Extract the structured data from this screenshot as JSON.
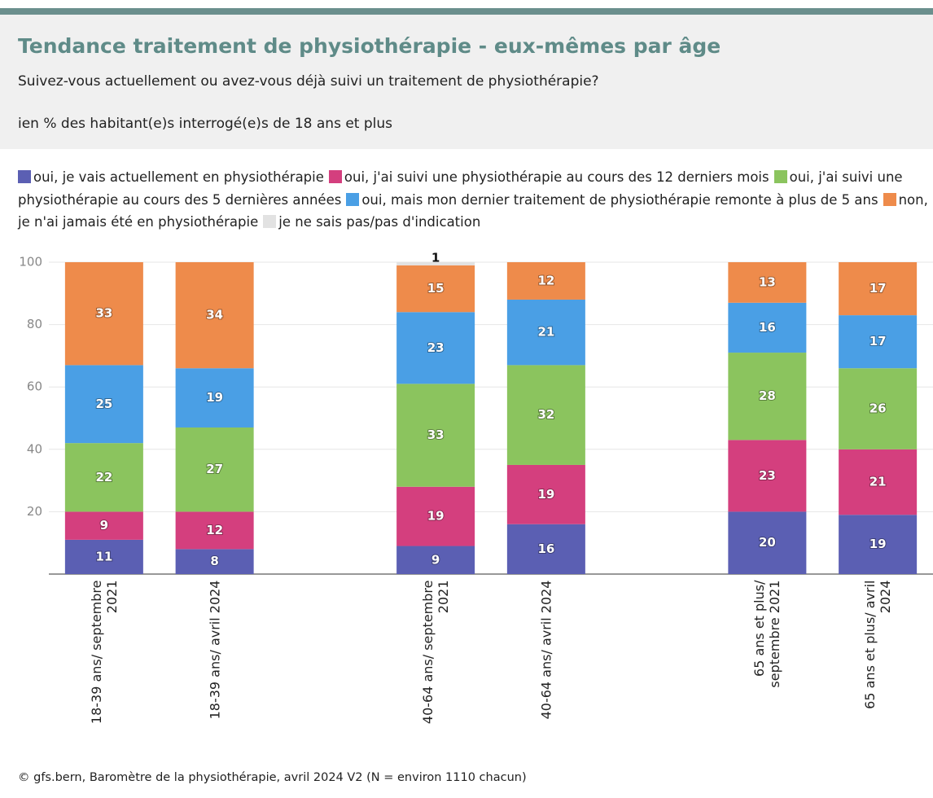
{
  "chart_data": {
    "type": "bar",
    "stacked": true,
    "title": "Tendance traitement de physiothérapie - eux-mêmes par âge",
    "subtitle": "Suivez-vous actuellement ou avez-vous déjà suivi un traitement de physiothérapie?",
    "unit_note": "ien % des habitant(e)s interrogé(e)s de 18 ans et plus",
    "source": "© gfs.bern, Baromètre de la physiothérapie, avril 2024 V2 (N = environ 1110 chacun)",
    "categories": [
      "18-39 ans/ septembre 2021",
      "18-39 ans/ avril 2024",
      null,
      "40-64 ans/ septembre 2021",
      "40-64 ans/ avril 2024",
      null,
      "65 ans et plus/ septembre 2021",
      "65 ans et plus/ avril 2024"
    ],
    "series": [
      {
        "name": "oui, je vais actuellement en physiothérapie",
        "color": "#5b5fb3",
        "values": [
          11,
          8,
          null,
          9,
          16,
          null,
          20,
          19
        ]
      },
      {
        "name": "oui, j'ai suivi une physiothérapie au cours des 12 derniers mois",
        "color": "#d43f7e",
        "values": [
          9,
          12,
          null,
          19,
          19,
          null,
          23,
          21
        ]
      },
      {
        "name": "oui, j'ai suivi une physiothérapie au cours des 5 dernières années",
        "color": "#8bc45e",
        "values": [
          22,
          27,
          null,
          33,
          32,
          null,
          28,
          26
        ]
      },
      {
        "name": "oui, mais mon dernier traitement de physiothérapie remonte à plus de 5 ans",
        "color": "#4a9fe5",
        "values": [
          25,
          19,
          null,
          23,
          21,
          null,
          16,
          17
        ]
      },
      {
        "name": "non, je n'ai jamais été en physiothérapie",
        "color": "#ee8b4b",
        "values": [
          33,
          34,
          null,
          15,
          12,
          null,
          13,
          17
        ]
      },
      {
        "name": "je ne sais pas/pas d'indication",
        "color": "#e2e2e2",
        "values": [
          null,
          null,
          null,
          1,
          null,
          null,
          null,
          null
        ]
      }
    ],
    "ylim": [
      0,
      100
    ],
    "yticks": [
      20,
      40,
      60,
      80,
      100
    ],
    "grid": true
  }
}
